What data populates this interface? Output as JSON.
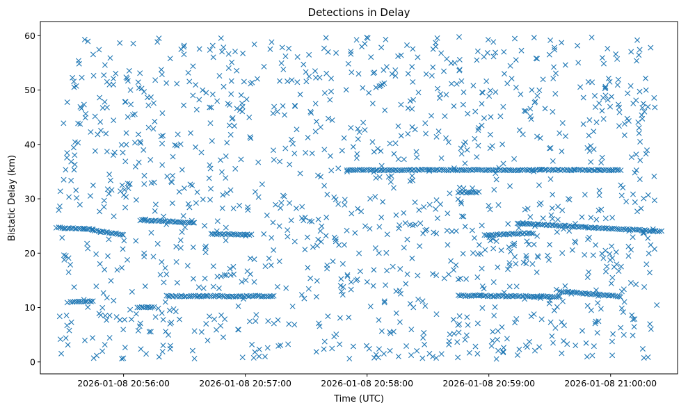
{
  "chart_data": {
    "type": "scatter",
    "title": "Detections in Delay",
    "xlabel": "Time (UTC)",
    "ylabel": "Bistatic Delay (km)",
    "marker": "x",
    "marker_color": "#1f77b4",
    "x_ticks": [
      "2026-01-08 20:56:00",
      "2026-01-08 20:57:00",
      "2026-01-08 20:58:00",
      "2026-01-08 20:59:00",
      "2026-01-08 21:00:00"
    ],
    "y_ticks": [
      0,
      10,
      20,
      30,
      40,
      50,
      60
    ],
    "x_range": [
      "2026-01-08 20:55:19",
      "2026-01-08 21:00:33"
    ],
    "ylim": [
      -2.2,
      62.6
    ],
    "grid": false,
    "tracks": [
      {
        "x": [
          "2026-01-08 20:55:27",
          "2026-01-08 20:55:45"
        ],
        "y": [
          24.7,
          24.4
        ]
      },
      {
        "x": [
          "2026-01-08 20:55:45",
          "2026-01-08 20:56:00"
        ],
        "y": [
          24.2,
          23.4
        ]
      },
      {
        "x": [
          "2026-01-08 20:56:08",
          "2026-01-08 20:56:35"
        ],
        "y": [
          26.1,
          25.6
        ]
      },
      {
        "x": [
          "2026-01-08 20:56:43",
          "2026-01-08 20:57:03"
        ],
        "y": [
          23.5,
          23.4
        ]
      },
      {
        "x": [
          "2026-01-08 20:56:21",
          "2026-01-08 20:57:14"
        ],
        "y": [
          12.1,
          12.1
        ]
      },
      {
        "x": [
          "2026-01-08 20:55:34",
          "2026-01-08 20:55:45"
        ],
        "y": [
          11.1,
          11.1
        ]
      },
      {
        "x": [
          "2026-01-08 20:56:07",
          "2026-01-08 20:56:15"
        ],
        "y": [
          10.0,
          10.0
        ]
      },
      {
        "x": [
          "2026-01-08 20:57:50",
          "2026-01-08 21:00:05"
        ],
        "y": [
          35.3,
          35.3
        ]
      },
      {
        "x": [
          "2026-01-08 20:58:58",
          "2026-01-08 20:59:22"
        ],
        "y": [
          23.3,
          23.7
        ]
      },
      {
        "x": [
          "2026-01-08 20:59:14",
          "2026-01-08 21:00:25"
        ],
        "y": [
          25.5,
          24.0
        ]
      },
      {
        "x": [
          "2026-01-08 20:58:45",
          "2026-01-08 20:59:35"
        ],
        "y": [
          12.2,
          12.0
        ]
      },
      {
        "x": [
          "2026-01-08 20:59:35",
          "2026-01-08 21:00:05"
        ],
        "y": [
          13.0,
          12.0
        ]
      },
      {
        "x": [
          "2026-01-08 20:58:45",
          "2026-01-08 20:58:55"
        ],
        "y": [
          31.2,
          31.2
        ]
      }
    ],
    "noise": {
      "x_range": [
        "2026-01-08 20:55:28",
        "2026-01-08 21:00:23"
      ],
      "y_range": [
        0.5,
        59.8
      ],
      "count": 1250
    }
  }
}
